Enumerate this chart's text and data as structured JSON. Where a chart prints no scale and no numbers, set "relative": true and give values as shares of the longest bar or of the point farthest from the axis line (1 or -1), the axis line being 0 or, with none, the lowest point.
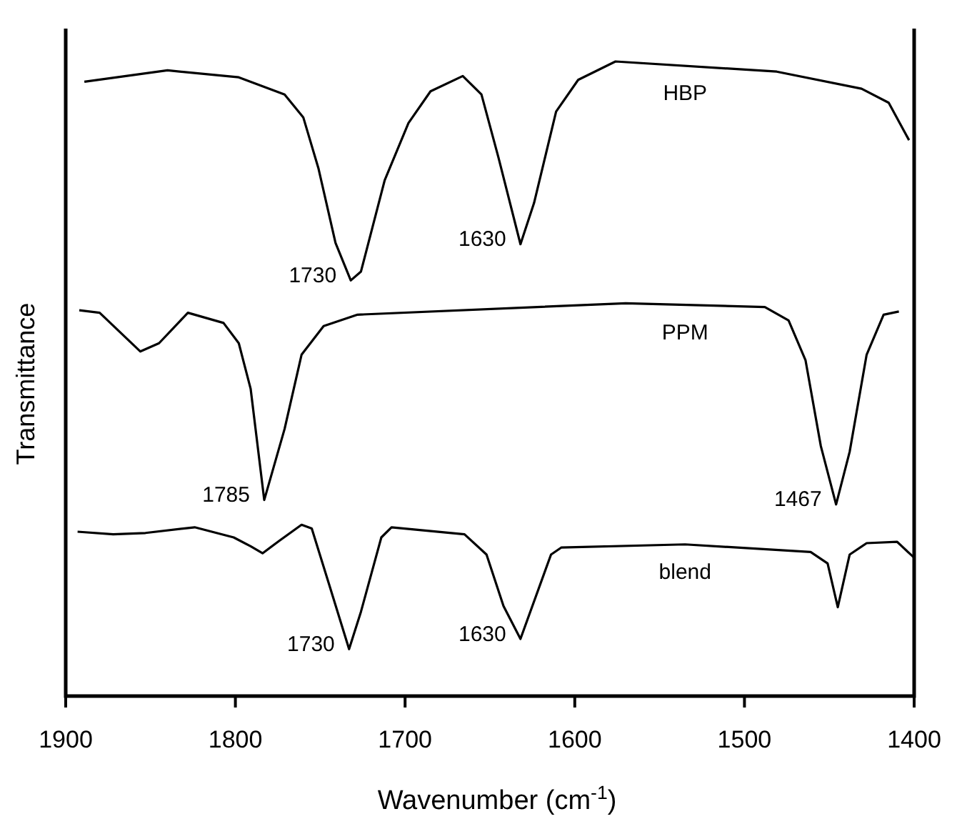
{
  "chart_data": {
    "type": "line",
    "relative": true,
    "xlabel": "Wavenumber (cm$^{-1}$)",
    "ylabel": "Transmittance",
    "xlim": [
      1900,
      1400
    ],
    "xticks": [
      1900,
      1800,
      1700,
      1600,
      1500,
      1400
    ],
    "grid": false,
    "marker": "none",
    "line_style": "solid",
    "series": [
      {
        "name": "HBP",
        "color": "#000000",
        "x": [
          1889,
          1840,
          1798,
          1771,
          1760,
          1751,
          1741,
          1732,
          1726,
          1712,
          1698,
          1685,
          1666,
          1655,
          1645,
          1632,
          1624,
          1611,
          1598,
          1576,
          1481,
          1431,
          1415,
          1403
        ],
        "values": [
          0.968,
          0.986,
          0.975,
          0.948,
          0.912,
          0.831,
          0.714,
          0.655,
          0.669,
          0.813,
          0.903,
          0.953,
          0.977,
          0.948,
          0.849,
          0.712,
          0.777,
          0.921,
          0.971,
          1.0,
          0.984,
          0.957,
          0.935,
          0.876
        ]
      },
      {
        "name": "PPM",
        "color": "#000000",
        "x": [
          1892,
          1880,
          1856,
          1845,
          1828,
          1807,
          1798,
          1791,
          1783,
          1771,
          1761,
          1748,
          1728,
          1570,
          1488,
          1474,
          1464,
          1455,
          1446,
          1438,
          1428,
          1418,
          1409
        ],
        "values": [
          0.608,
          0.604,
          0.543,
          0.556,
          0.604,
          0.588,
          0.556,
          0.484,
          0.309,
          0.421,
          0.538,
          0.583,
          0.601,
          0.619,
          0.613,
          0.592,
          0.529,
          0.394,
          0.302,
          0.385,
          0.538,
          0.601,
          0.606
        ]
      },
      {
        "name": "blend",
        "color": "#000000",
        "x": [
          1893,
          1872,
          1853,
          1824,
          1801,
          1791,
          1784,
          1774,
          1761,
          1755,
          1745,
          1733,
          1726,
          1714,
          1708,
          1665,
          1652,
          1642,
          1632,
          1614,
          1608,
          1535,
          1461,
          1451,
          1445,
          1438,
          1428,
          1410,
          1400
        ],
        "values": [
          0.259,
          0.255,
          0.257,
          0.266,
          0.25,
          0.236,
          0.225,
          0.245,
          0.27,
          0.264,
          0.178,
          0.074,
          0.133,
          0.25,
          0.266,
          0.255,
          0.223,
          0.142,
          0.09,
          0.223,
          0.234,
          0.239,
          0.227,
          0.209,
          0.14,
          0.223,
          0.241,
          0.243,
          0.218
        ]
      }
    ],
    "annotations": [
      {
        "text": "1730",
        "x": 1732,
        "y": 0.655
      },
      {
        "text": "1630",
        "x": 1632,
        "y": 0.712
      },
      {
        "text": "1785",
        "x": 1783,
        "y": 0.309
      },
      {
        "text": "1467",
        "x": 1446,
        "y": 0.302
      },
      {
        "text": "1730",
        "x": 1733,
        "y": 0.074
      },
      {
        "text": "1630",
        "x": 1632,
        "y": 0.09
      }
    ]
  }
}
